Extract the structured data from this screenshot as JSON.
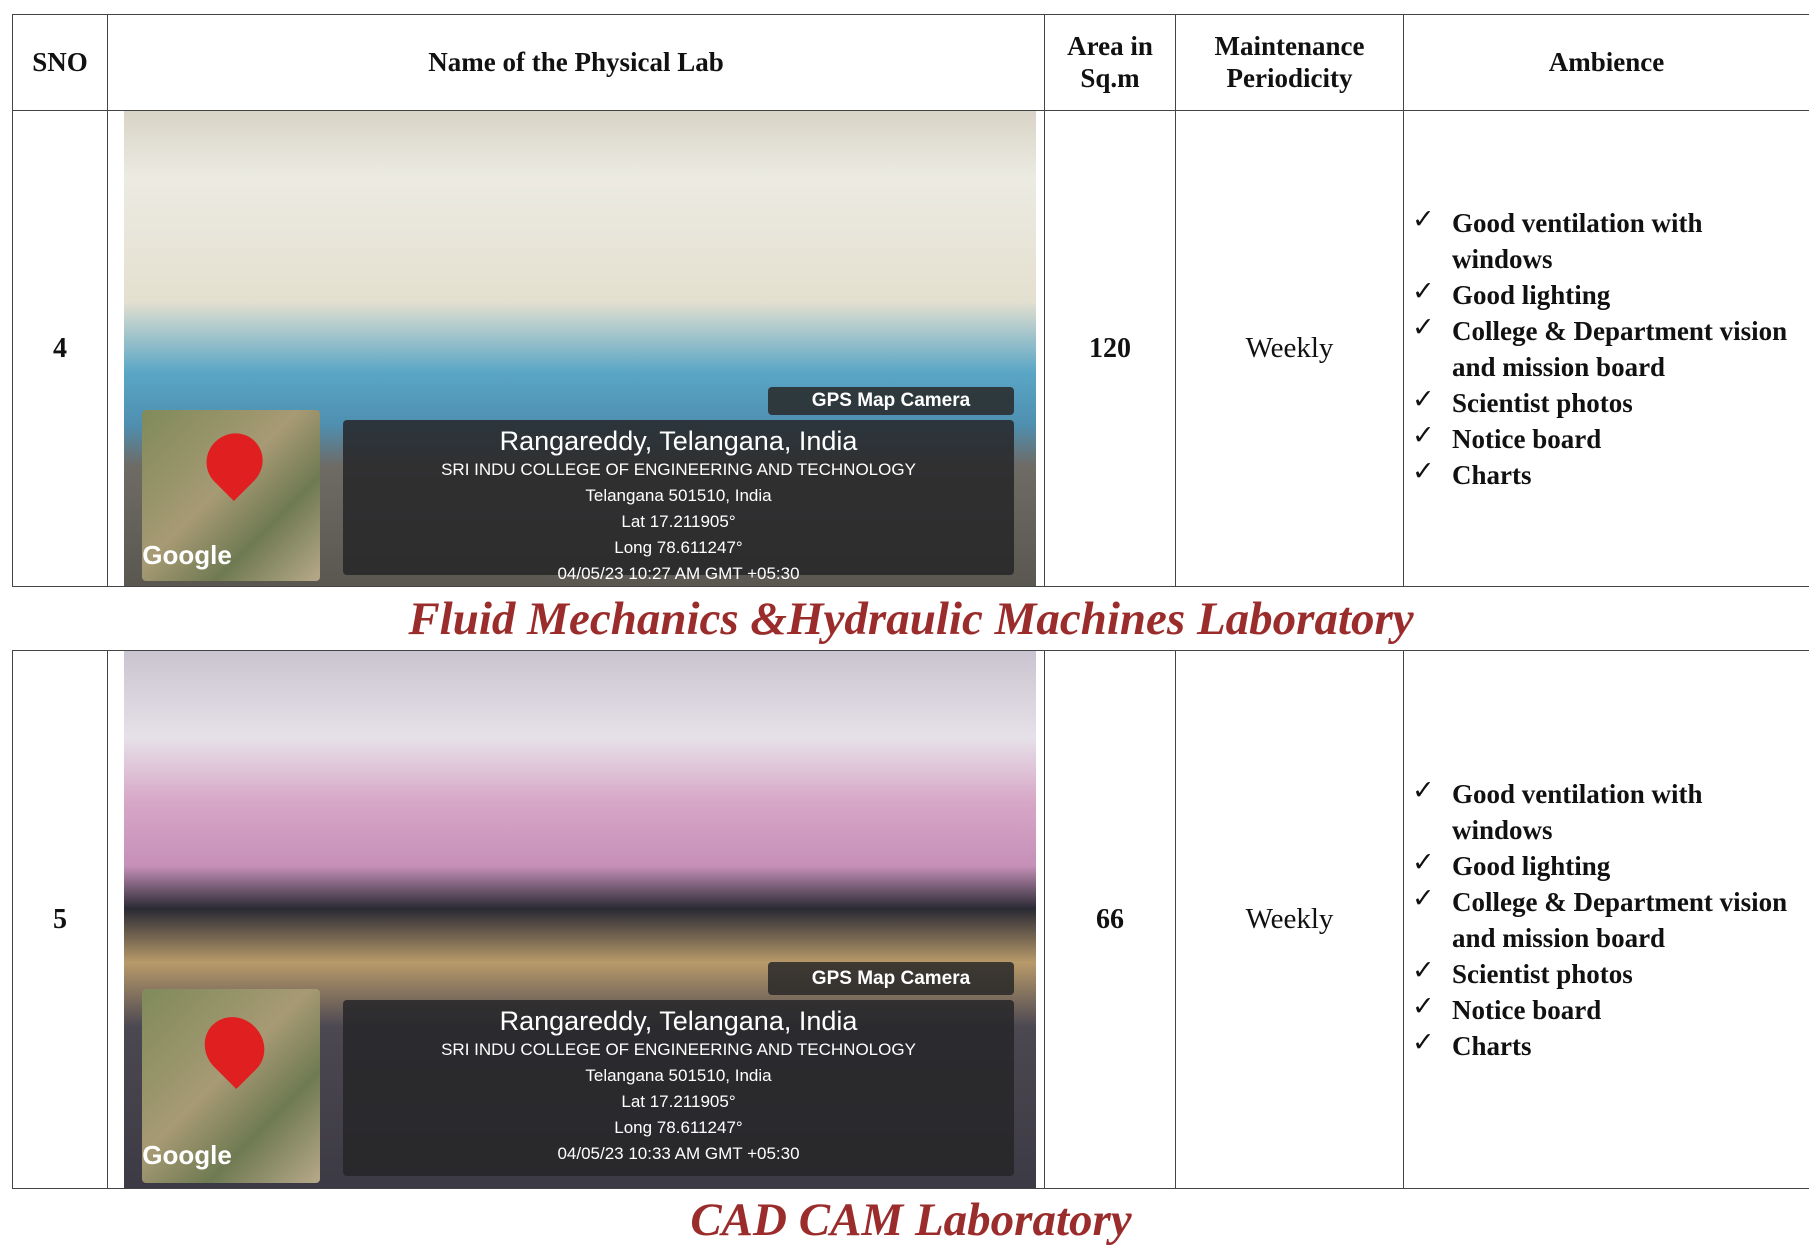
{
  "header": {
    "sno": "SNO",
    "name": "Name of the Physical Lab",
    "area": "Area in Sq.m",
    "maintenance": "Maintenance Periodicity",
    "ambience": "Ambience"
  },
  "rows": [
    {
      "sno": "4",
      "area": "120",
      "maintenance": "Weekly",
      "ambience": [
        "Good ventilation with windows",
        "Good lighting",
        "College & Department vision and mission board",
        "Scientist photos",
        "Notice board",
        "Charts"
      ],
      "photo": {
        "badge": "GPS Map Camera",
        "location": "Rangareddy, Telangana, India",
        "college": "SRI INDU COLLEGE OF ENGINEERING AND TECHNOLOGY",
        "address": "Telangana 501510, India",
        "lat": "Lat 17.211905°",
        "long": "Long 78.611247°",
        "timestamp": "04/05/23 10:27 AM GMT +05:30",
        "map_label": "Google"
      },
      "caption": "Fluid Mechanics &Hydraulic Machines Laboratory"
    },
    {
      "sno": "5",
      "area": "66",
      "maintenance": "Weekly",
      "ambience": [
        "Good ventilation with windows",
        "Good lighting",
        "College & Department vision and mission board",
        "Scientist photos",
        "Notice board",
        "Charts"
      ],
      "photo": {
        "badge": "GPS Map Camera",
        "location": "Rangareddy, Telangana, India",
        "college": "SRI INDU COLLEGE OF ENGINEERING AND TECHNOLOGY",
        "address": "Telangana 501510, India",
        "lat": "Lat 17.211905°",
        "long": "Long 78.611247°",
        "timestamp": "04/05/23 10:33 AM GMT +05:30",
        "map_label": "Google"
      },
      "caption": "CAD CAM Laboratory"
    }
  ]
}
